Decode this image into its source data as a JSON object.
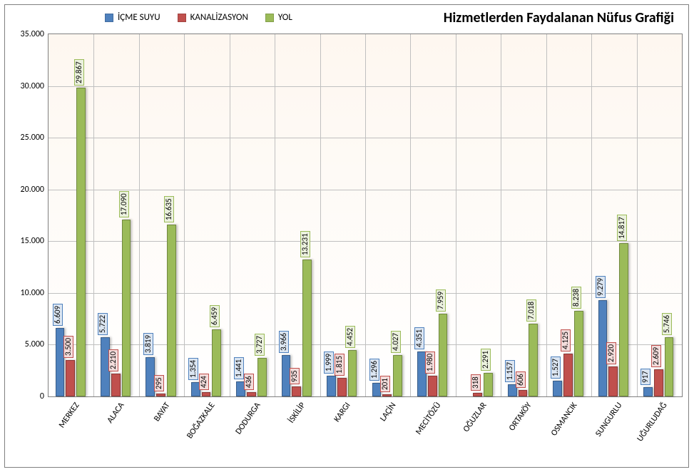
{
  "chart": {
    "type": "bar",
    "title": "Hizmetlerden Faydalanan Nüfus Grafiği",
    "title_fontsize": 20,
    "background_top": "#fef7f0",
    "background_bottom": "#ffffff",
    "grid_color": "#c0c0c0",
    "border_color": "#808080",
    "ylim": [
      0,
      35000
    ],
    "ytick_step": 5000,
    "y_labels": [
      "0",
      "5.000",
      "10.000",
      "15.000",
      "20.000",
      "25.000",
      "30.000",
      "35.000"
    ],
    "categories": [
      "MERKEZ",
      "ALACA",
      "BAYAT",
      "BOĞAZKALE",
      "DODURGA",
      "İSKİLİP",
      "KARGI",
      "LAÇİN",
      "MECİTÖZÜ",
      "OĞUZLAR",
      "ORTAKÖY",
      "OSMANCIK",
      "SUNGURLU",
      "UĞURLUDAĞ"
    ],
    "series": [
      {
        "name": "İÇME SUYU",
        "fill": "#4f81bd",
        "border": "#385d8a",
        "label_bg": "#dbe5f1",
        "label_border": "#4f81bd",
        "values": [
          6609,
          5722,
          3819,
          1354,
          1441,
          3966,
          1999,
          1296,
          4351,
          null,
          1157,
          1527,
          9279,
          917
        ]
      },
      {
        "name": "KANALİZASYON",
        "fill": "#c0504d",
        "border": "#8c3836",
        "label_bg": "#f2dcdb",
        "label_border": "#c0504d",
        "values": [
          3500,
          2210,
          295,
          424,
          436,
          935,
          1815,
          201,
          1980,
          318,
          606,
          4125,
          2920,
          2609
        ]
      },
      {
        "name": "YOL",
        "fill": "#9bbb59",
        "border": "#71893f",
        "label_bg": "#ebf1de",
        "label_border": "#9bbb59",
        "values": [
          29867,
          17090,
          16635,
          6459,
          3727,
          13231,
          4452,
          4027,
          7959,
          2291,
          7018,
          8238,
          14817,
          5746
        ]
      }
    ],
    "label_fontsize": 11,
    "axis_fontsize": 12,
    "legend_position": "top-left",
    "bar_group_width": 0.7
  }
}
